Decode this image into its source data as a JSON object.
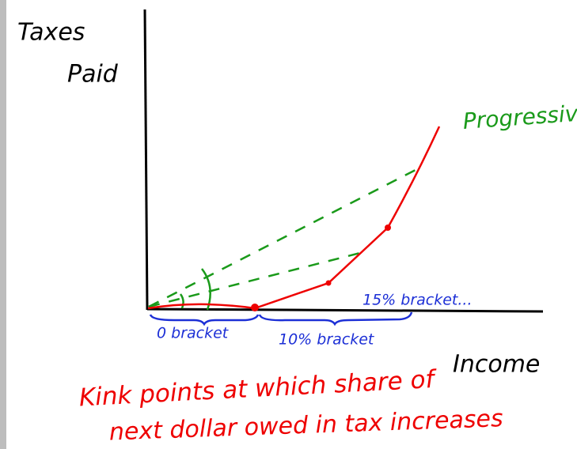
{
  "axes": {
    "y_label": [
      "Taxes",
      "Paid"
    ],
    "x_label": "Income"
  },
  "curve_label": "Progressive",
  "brackets": [
    "0 bracket",
    "10% bracket",
    "15% bracket..."
  ],
  "caption": [
    "Kink points at which share of",
    "next dollar owed in tax increases"
  ]
}
